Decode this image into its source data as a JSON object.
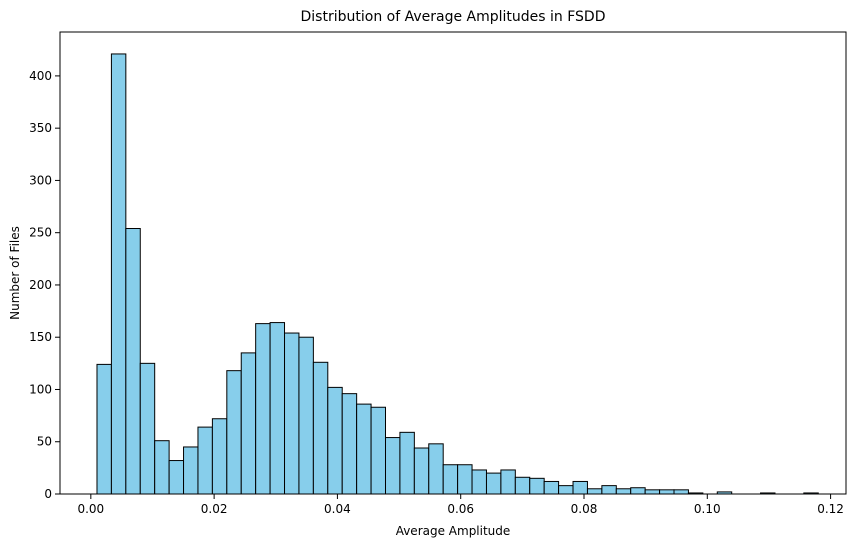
{
  "chart_data": {
    "type": "histogram",
    "title": "Distribution of Average Amplitudes in FSDD",
    "xlabel": "Average Amplitude",
    "ylabel": "Number of Files",
    "xlim": [
      -0.005,
      0.1225
    ],
    "ylim": [
      0,
      442
    ],
    "xticks": [
      0.0,
      0.02,
      0.04,
      0.06,
      0.08,
      0.1,
      0.12
    ],
    "xtick_labels": [
      "0.00",
      "0.02",
      "0.04",
      "0.06",
      "0.08",
      "0.10",
      "0.12"
    ],
    "yticks": [
      0,
      50,
      100,
      150,
      200,
      250,
      300,
      350,
      400
    ],
    "ytick_labels": [
      "0",
      "50",
      "100",
      "150",
      "200",
      "250",
      "300",
      "350",
      "400"
    ],
    "bin_start": 0.001,
    "bin_width": 0.00234,
    "counts": [
      124,
      421,
      254,
      125,
      51,
      32,
      45,
      64,
      72,
      118,
      135,
      163,
      164,
      154,
      150,
      126,
      102,
      96,
      86,
      83,
      54,
      59,
      44,
      48,
      28,
      28,
      23,
      20,
      23,
      16,
      15,
      12,
      8,
      12,
      5,
      8,
      5,
      6,
      4,
      4,
      4,
      1,
      0,
      2,
      0,
      0,
      1,
      0,
      0,
      1
    ],
    "bar_color": "#87ceeb",
    "edge_color": "#000000",
    "grid": false
  }
}
